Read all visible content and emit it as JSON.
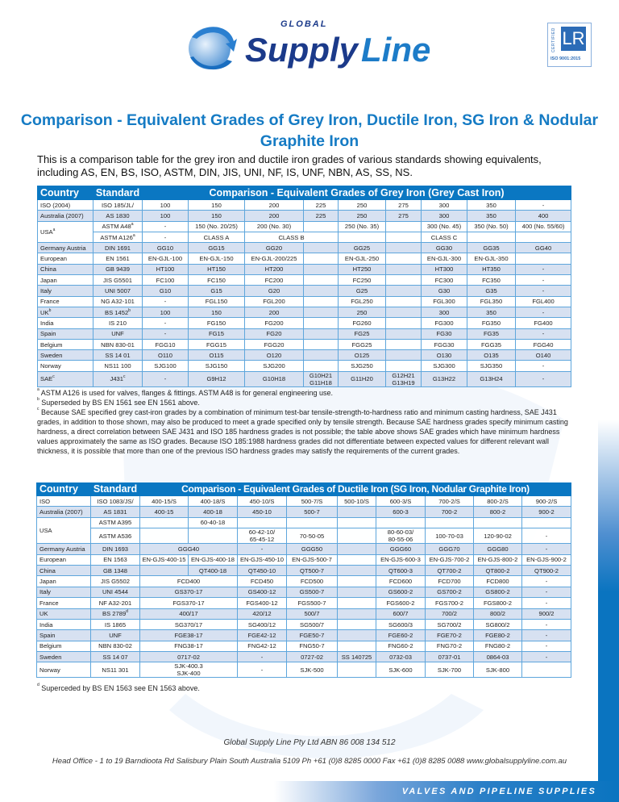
{
  "brand": {
    "global": "GLOBAL",
    "supply": "Supply",
    "line": "Line",
    "colors": {
      "navy": "#1b3a8a",
      "blue": "#1d7cc8",
      "accent": "#0a77c2"
    }
  },
  "certification": {
    "mark": "LR",
    "label": "CERTIFIED",
    "standard": "ISO 9001:2015"
  },
  "title": "Comparison - Equivalent Grades of Grey Iron, Ductile Iron, SG Iron & Nodular Graphite Iron",
  "intro": "This is a comparison table for the grey iron and ductile iron grades of various standards showing equivalents, including AS, EN, BS, ISO, ASTM, DIN, JIS, UNI, NF, IS, UNF, NBN, AS, SS, NS.",
  "grey_table": {
    "headers": {
      "country": "Country",
      "standard": "Standard",
      "title": "Comparison - Equivalent Grades of Grey Iron (Grey Cast Iron)"
    },
    "rows": [
      {
        "country": "ISO (2004)",
        "standard": "ISO 185/JL/",
        "cells": [
          "100",
          "150",
          "200",
          "225",
          "250",
          "275",
          "300",
          "350",
          "-"
        ]
      },
      {
        "country": "Australia (2007)",
        "standard": "AS 1830",
        "cells": [
          "100",
          "150",
          "200",
          "225",
          "250",
          "275",
          "300",
          "350",
          "400"
        ]
      },
      {
        "country": "USA",
        "country_sup": "a",
        "standard": "ASTM A48",
        "standard_sup": "a",
        "cells": [
          "-",
          "150 (No. 20/25)",
          "200 (No. 30)",
          "",
          "250 (No. 35)",
          "",
          "300 (No. 45)",
          "350 (No. 50)",
          "400 (No. 55/60)"
        ]
      },
      {
        "country": null,
        "standard": "ASTM A126",
        "standard_sup": "a",
        "cells": [
          "-",
          "CLASS A",
          "CLASS B",
          null,
          "",
          "",
          "CLASS C",
          "",
          ""
        ]
      },
      {
        "country": "Germany Austria",
        "standard": "DIN 1691",
        "cells": [
          "GG10",
          "GG15",
          "GG20",
          "",
          "GG25",
          "",
          "GG30",
          "GG35",
          "GG40"
        ]
      },
      {
        "country": "European",
        "standard": "EN 1561",
        "cells": [
          "EN-GJL-100",
          "EN-GJL-150",
          "EN-GJL-200/225",
          "",
          "EN-GJL-250",
          "",
          "EN-GJL-300",
          "EN-GJL-350",
          ""
        ]
      },
      {
        "country": "China",
        "standard": "GB 9439",
        "cells": [
          "HT100",
          "HT150",
          "HT200",
          "",
          "HT250",
          "",
          "HT300",
          "HT350",
          "-"
        ]
      },
      {
        "country": "Japan",
        "standard": "JIS G5501",
        "cells": [
          "FC100",
          "FC150",
          "FC200",
          "",
          "FC250",
          "",
          "FC300",
          "FC350",
          "-"
        ]
      },
      {
        "country": "Italy",
        "standard": "UNI 5007",
        "cells": [
          "G10",
          "G15",
          "G20",
          "",
          "G25",
          "",
          "G30",
          "G35",
          "-"
        ]
      },
      {
        "country": "France",
        "standard": "NG A32-101",
        "cells": [
          "-",
          "FGL150",
          "FGL200",
          "",
          "FGL250",
          "",
          "FGL300",
          "FGL350",
          "FGL400"
        ]
      },
      {
        "country": "UK",
        "country_sup": "b",
        "standard": "BS 1452",
        "standard_sup": "b",
        "cells": [
          "100",
          "150",
          "200",
          "",
          "250",
          "",
          "300",
          "350",
          "-"
        ]
      },
      {
        "country": "India",
        "standard": "IS 210",
        "cells": [
          "-",
          "FG150",
          "FG200",
          "",
          "FG260",
          "",
          "FG300",
          "FG350",
          "FG400"
        ]
      },
      {
        "country": "Spain",
        "standard": "UNF",
        "cells": [
          "-",
          "FG15",
          "FG20",
          "",
          "FG25",
          "",
          "FG30",
          "FG35",
          "-"
        ]
      },
      {
        "country": "Belgium",
        "standard": "NBN 830-01",
        "cells": [
          "FGG10",
          "FGG15",
          "FGG20",
          "",
          "FGG25",
          "",
          "FGG30",
          "FGG35",
          "FGG40"
        ]
      },
      {
        "country": "Sweden",
        "standard": "SS 14 01",
        "cells": [
          "O110",
          "O115",
          "O120",
          "",
          "O125",
          "",
          "O130",
          "O135",
          "O140"
        ]
      },
      {
        "country": "Norway",
        "standard": "NS11 100",
        "cells": [
          "SJG100",
          "SJG150",
          "SJG200",
          "",
          "SJG250",
          "",
          "SJG300",
          "SJG350",
          "-"
        ]
      },
      {
        "country": "SAE",
        "country_sup": "c",
        "standard": "J431",
        "standard_sup": "c",
        "cells": [
          "-",
          "G9H12",
          "G10H18",
          "G10H21\nG11H18",
          "G11H20",
          "G12H21\nG13H19",
          "G13H22",
          "G13H24",
          "-"
        ]
      }
    ]
  },
  "grey_notes": [
    {
      "mark": "a",
      "text": "ASTM A126 is used for valves, flanges & fittings. ASTM A48 is for general engineering use."
    },
    {
      "mark": "b",
      "text": "Superseded by BS EN 1561 see EN 1561 above."
    },
    {
      "mark": "c",
      "text": "Because SAE specified grey cast-iron grades by a combination of minimum test-bar tensile-strength-to-hardness ratio and minimum casting hardness, SAE J431 grades, in addition to those shown, may also be produced to meet a grade specified only by tensile strength. Because SAE hardness grades specify minimum casting hardness, a direct correlation between SAE J431 and ISO 185 hardness grades is not possible; the table above shows SAE grades which have minimum hardness values approximately the same as ISO grades. Because ISO 185:1988 hardness grades did not differentiate between expected values for different relevant wall thickness, it is possible that more than one of the previous ISO hardness grades may satisfy the requirements of the current grades."
    }
  ],
  "ductile_table": {
    "headers": {
      "country": "Country",
      "standard": "Standard",
      "title": "Comparison - Equivalent Grades of Ductile Iron (SG Iron, Nodular Graphite Iron)"
    },
    "rows": [
      {
        "country": "ISO",
        "standard": "ISO 1083/JS/",
        "cells": [
          "400-15/S",
          "400-18/S",
          "450-10/S",
          "500-7/S",
          "500-10/S",
          "600-3/S",
          "700-2/S",
          "800-2/S",
          "900-2/S"
        ]
      },
      {
        "country": "Australia (2007)",
        "standard": "AS 1831",
        "cells": [
          "400-15",
          "400-18",
          "450-10",
          "500-7",
          "",
          "600-3",
          "700-2",
          "800-2",
          "900-2"
        ]
      },
      {
        "country": "USA",
        "standard": "ASTM A395",
        "cells": [
          "",
          "60-40-18",
          "",
          "",
          "",
          "",
          "",
          "",
          ""
        ]
      },
      {
        "country": null,
        "standard": "ASTM A536",
        "cells": [
          "",
          "",
          "60-42-10/\n65-45-12",
          "70-50-05",
          "",
          "80-60-03/\n80-55-06",
          "100-70-03",
          "120-90-02",
          "-"
        ]
      },
      {
        "country": "Germany Austria",
        "standard": "DIN 1693",
        "cells": [
          "GGG40",
          null,
          "-",
          "GGG50",
          "",
          "GGG60",
          "GGG70",
          "GGG80",
          "-"
        ]
      },
      {
        "country": "European",
        "standard": "EN 1563",
        "cells": [
          "EN-GJS-400-15",
          "EN-GJS-400-18",
          "EN-GJS-450-10",
          "EN-GJS-500-7",
          "",
          "EN-GJS-600-3",
          "EN-GJS-700-2",
          "EN-GJS-800-2",
          "EN-GJS-900-2"
        ]
      },
      {
        "country": "China",
        "standard": "GB 1348",
        "cells": [
          "",
          "QT400-18",
          "QT450-10",
          "QT500-7",
          "",
          "QT600-3",
          "QT700-2",
          "QT800-2",
          "QT900-2"
        ]
      },
      {
        "country": "Japan",
        "standard": "JIS G5502",
        "cells": [
          "FCD400",
          null,
          "FCD450",
          "FCD500",
          "",
          "FCD600",
          "FCD700",
          "FCD800",
          "-"
        ]
      },
      {
        "country": "Italy",
        "standard": "UNI 4544",
        "cells": [
          "GS370-17",
          null,
          "GS400-12",
          "GS500-7",
          "",
          "GS600-2",
          "GS700-2",
          "GS800-2",
          "-"
        ]
      },
      {
        "country": "France",
        "standard": "NF A32-201",
        "cells": [
          "FGS370-17",
          null,
          "FGS400-12",
          "FGS500-7",
          "",
          "FGS600-2",
          "FGS700-2",
          "FGS800-2",
          "-"
        ]
      },
      {
        "country": "UK",
        "standard": "BS 2789",
        "standard_sup": "d",
        "cells": [
          "400/17",
          null,
          "420/12",
          "500/7",
          "",
          "600/7",
          "700/2",
          "800/2",
          "900/2"
        ]
      },
      {
        "country": "India",
        "standard": "IS 1865",
        "cells": [
          "SG370/17",
          null,
          "SG400/12",
          "SG500/7",
          "",
          "SG600/3",
          "SG700/2",
          "SG800/2",
          "-"
        ]
      },
      {
        "country": "Spain",
        "standard": "UNF",
        "cells": [
          "FGE38-17",
          null,
          "FGE42-12",
          "FGE50-7",
          "",
          "FGE60-2",
          "FGE70-2",
          "FGE80-2",
          "-"
        ]
      },
      {
        "country": "Belgium",
        "standard": "NBN 830-02",
        "cells": [
          "FNG38-17",
          null,
          "FNG42-12",
          "FNG50-7",
          "",
          "FNG60-2",
          "FNG70-2",
          "FNG80-2",
          "-"
        ]
      },
      {
        "country": "Sweden",
        "standard": "SS 14 07",
        "cells": [
          "0717-02",
          null,
          "-",
          "0727-02",
          "SS 140725",
          "0732-03",
          "0737-01",
          "0864-03",
          "-"
        ]
      },
      {
        "country": "Norway",
        "standard": "NS11 301",
        "cells": [
          "SJK-400.3\nSJK-400",
          null,
          "-",
          "SJK-500",
          "",
          "SJK-600",
          "SJK-700",
          "SJK-800",
          ""
        ]
      }
    ]
  },
  "ductile_notes": [
    {
      "mark": "d",
      "text": "Superceded by BS EN 1563 see EN 1563 above."
    }
  ],
  "footer": {
    "company": "Global Supply Line Pty Ltd   ABN 86 008 134 512",
    "address": "Head Office - 1 to 19 Barndioota Rd Salisbury Plain South Australia 5109  Ph +61 (0)8 8285 0000 Fax +61 (0)8 8285 0088  www.globalsupplyline.com.au",
    "tagline": "VALVES AND PIPELINE SUPPLIES"
  }
}
